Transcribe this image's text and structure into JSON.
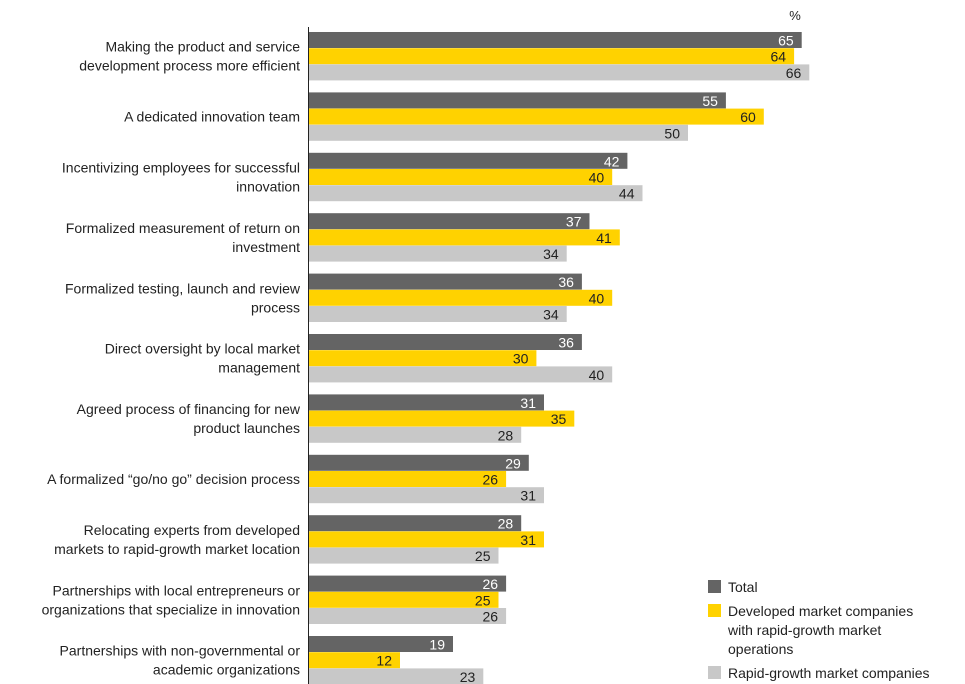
{
  "chart_data": {
    "type": "bar",
    "orientation": "horizontal",
    "unit_label": "%",
    "title": "",
    "xlabel": "",
    "ylabel": "",
    "xlim": [
      0,
      100
    ],
    "grid": false,
    "legend_position": "bottom-right",
    "categories": [
      [
        "Making the product and service",
        "development process more efficient"
      ],
      [
        "A dedicated innovation team"
      ],
      [
        "Incentivizing employees for successful",
        "innovation"
      ],
      [
        "Formalized measurement of return on",
        "investment"
      ],
      [
        "Formalized testing, launch and review",
        "process"
      ],
      [
        "Direct oversight by local market",
        "management"
      ],
      [
        "Agreed process of financing for new",
        "product launches"
      ],
      [
        "A formalized “go/no go” decision process"
      ],
      [
        "Relocating experts from developed",
        "markets to rapid-growth market location"
      ],
      [
        "Partnerships with local entrepreneurs or",
        "organizations that specialize in innovation"
      ],
      [
        "Partnerships with non-governmental or",
        "academic organizations"
      ]
    ],
    "series": [
      {
        "name": "Total",
        "legend_lines": [
          "Total"
        ],
        "color": "#646464",
        "label_color": "#ffffff",
        "values": [
          65,
          55,
          42,
          37,
          36,
          36,
          31,
          29,
          28,
          26,
          19
        ]
      },
      {
        "name": "Developed market companies with rapid-growth market operations",
        "legend_lines": [
          "Developed market companies",
          "with rapid-growth market",
          "operations"
        ],
        "color": "#ffd200",
        "label_color": "#222222",
        "values": [
          64,
          60,
          40,
          41,
          40,
          30,
          35,
          26,
          31,
          25,
          12
        ]
      },
      {
        "name": "Rapid-growth market companies",
        "legend_lines": [
          "Rapid-growth market companies"
        ],
        "color": "#c8c8c8",
        "label_color": "#222222",
        "values": [
          66,
          50,
          44,
          34,
          34,
          40,
          28,
          31,
          25,
          26,
          23
        ]
      }
    ]
  }
}
